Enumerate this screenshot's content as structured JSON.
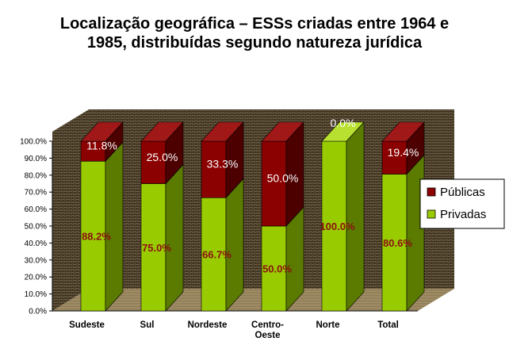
{
  "chart_data": {
    "type": "bar",
    "stacked": true,
    "three_d": true,
    "title_lines": [
      "Localização geográfica – ESSs criadas entre 1964 e",
      "1985, distribuídas segundo natureza jurídica"
    ],
    "categories": [
      [
        "Sudeste"
      ],
      [
        "Sul"
      ],
      [
        "Nordeste"
      ],
      [
        "Centro-",
        "Oeste"
      ],
      [
        "Norte"
      ],
      [
        "Total"
      ]
    ],
    "series": [
      {
        "name": "Privadas",
        "color": "#99cc00",
        "side_color": "#5a7a00",
        "top_color": "#b8e030",
        "values": [
          88.2,
          75.0,
          66.7,
          50.0,
          100.0,
          80.6
        ],
        "labels": [
          "88.2%",
          "75.0%",
          "66.7%",
          "50.0%",
          "100.0%",
          "80.6%"
        ]
      },
      {
        "name": "Públicas",
        "color": "#8b0000",
        "side_color": "#4d0000",
        "top_color": "#a01818",
        "values": [
          11.8,
          25.0,
          33.3,
          50.0,
          0.0,
          19.4
        ],
        "labels": [
          "11.8%",
          "25.0%",
          "33.3%",
          "50.0%",
          "0.0%",
          "19.4%"
        ]
      }
    ],
    "legend_order": [
      "Públicas",
      "Privadas"
    ],
    "ylim": [
      0,
      100
    ],
    "yticks": [
      "0.0%",
      "10.0%",
      "20.0%",
      "30.0%",
      "40.0%",
      "50.0%",
      "60.0%",
      "70.0%",
      "80.0%",
      "90.0%",
      "100.0%"
    ],
    "legend_position": "right",
    "grid": false,
    "colors": {
      "wall": "#7a6a4c",
      "wall_lines": "#2e2416",
      "floor": "#a8956c"
    }
  }
}
